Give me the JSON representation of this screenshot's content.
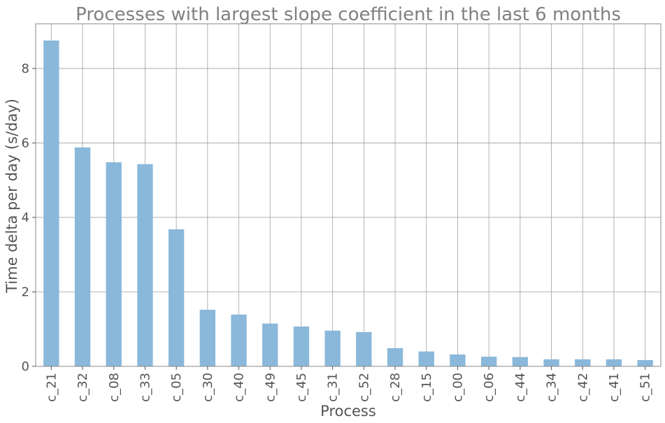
{
  "chart_data": {
    "type": "bar",
    "title": "Processes with largest slope coefficient in the last 6 months",
    "xlabel": "Process",
    "ylabel": "Time delta per day (s/day)",
    "categories": [
      "c_21",
      "c_32",
      "c_08",
      "c_33",
      "c_05",
      "c_30",
      "c_40",
      "c_49",
      "c_45",
      "c_31",
      "c_52",
      "c_28",
      "c_15",
      "c_00",
      "c_06",
      "c_44",
      "c_34",
      "c_42",
      "c_41",
      "c_51"
    ],
    "values": [
      8.75,
      5.88,
      5.48,
      5.43,
      3.68,
      1.52,
      1.39,
      1.15,
      1.07,
      0.96,
      0.92,
      0.49,
      0.4,
      0.32,
      0.26,
      0.25,
      0.19,
      0.19,
      0.19,
      0.17
    ],
    "ylim": [
      0,
      9.2
    ],
    "yticks": [
      0,
      2,
      4,
      6,
      8
    ],
    "grid": true,
    "bar_color": "#8ab8da"
  }
}
